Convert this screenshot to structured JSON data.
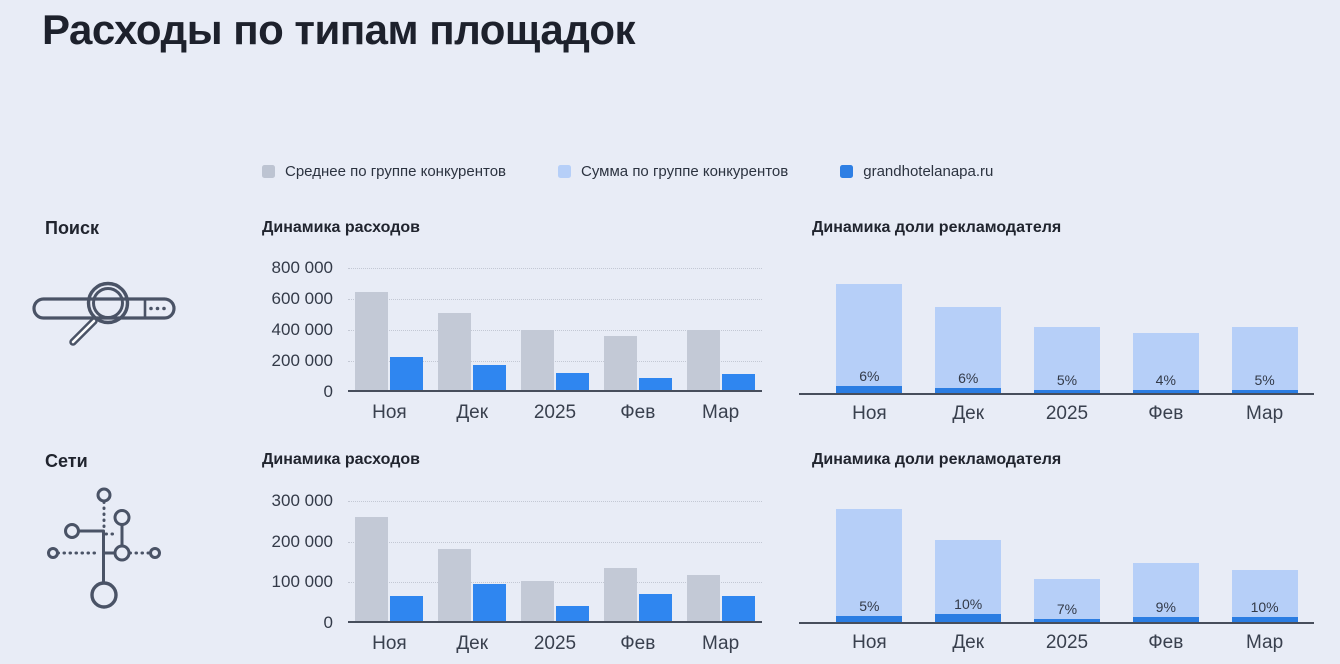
{
  "page": {
    "title": "Расходы по типам площадок",
    "background": "#e8ecf6"
  },
  "legend": [
    {
      "label": "Среднее по группе конкурентов",
      "color": "#bdc4d2",
      "series": "competitor-group-average"
    },
    {
      "label": "Сумма по группе конкурентов",
      "color": "#b6cff8",
      "series": "competitor-group-sum"
    },
    {
      "label": "grandhotelanapa.ru",
      "color": "#2e7fe4",
      "series": "advertiser"
    }
  ],
  "colors": {
    "background": "#e8ecf6",
    "avg_bar": "#c3c9d6",
    "sum_bar": "#b6cff8",
    "advertiser_bar": "#2f86f0",
    "advertiser_segment": "#2b7de2",
    "axis": "#474e5c",
    "grid": "#c3c8d4",
    "title_text": "#1d212c",
    "label_text": "#333a48"
  },
  "sections": [
    {
      "name": "Поиск",
      "icon": "search-bar-icon",
      "charts": [
        "search-expenses",
        "search-share"
      ]
    },
    {
      "name": "Сети",
      "icon": "network-icon",
      "charts": [
        "networks-expenses",
        "networks-share"
      ]
    }
  ],
  "chart_data": [
    {
      "id": "search-expenses",
      "type": "bar",
      "variant": "grouped",
      "section": "Поиск",
      "title": "Динамика расходов",
      "categories": [
        "Ноя",
        "Дек",
        "2025",
        "Фев",
        "Мар"
      ],
      "series": [
        {
          "name": "Среднее по группе конкурентов",
          "values": [
            630000,
            495000,
            385000,
            350000,
            385000
          ]
        },
        {
          "name": "grandhotelanapa.ru",
          "values": [
            210000,
            160000,
            110000,
            80000,
            105000
          ]
        }
      ],
      "ylim": [
        0,
        800000
      ],
      "yticks": [
        "800 000",
        "600 000",
        "400 000",
        "200 000",
        "0"
      ],
      "grid": "horizontal-dotted",
      "legend_position": "top-shared"
    },
    {
      "id": "search-share",
      "type": "bar",
      "variant": "stacked",
      "section": "Поиск",
      "title": "Динамика доли рекламодателя",
      "categories": [
        "Ноя",
        "Дек",
        "2025",
        "Фев",
        "Мар"
      ],
      "series": [
        {
          "name": "Сумма по группе конкурентов",
          "totals_relative": [
            100,
            79,
            61,
            55,
            61
          ]
        },
        {
          "name": "grandhotelanapa.ru",
          "share_percent": [
            6,
            6,
            5,
            4,
            5
          ]
        }
      ],
      "bar_labels": [
        "6%",
        "6%",
        "5%",
        "4%",
        "5%"
      ],
      "yaxis": "none",
      "grid": "off"
    },
    {
      "id": "networks-expenses",
      "type": "bar",
      "variant": "grouped",
      "section": "Сети",
      "title": "Динамика расходов",
      "categories": [
        "Ноя",
        "Дек",
        "2025",
        "Фев",
        "Мар"
      ],
      "series": [
        {
          "name": "Среднее по группе конкурентов",
          "values": [
            255000,
            176000,
            98000,
            130000,
            112000
          ]
        },
        {
          "name": "grandhotelanapa.ru",
          "values": [
            61000,
            92000,
            36000,
            67000,
            61000
          ]
        }
      ],
      "ylim": [
        0,
        300000
      ],
      "yticks": [
        "300 000",
        "200 000",
        "100 000",
        "0"
      ],
      "grid": "horizontal-dotted",
      "legend_position": "top-shared"
    },
    {
      "id": "networks-share",
      "type": "bar",
      "variant": "stacked",
      "section": "Сети",
      "title": "Динамика доли рекламодателя",
      "categories": [
        "Ноя",
        "Дек",
        "2025",
        "Фев",
        "Мар"
      ],
      "series": [
        {
          "name": "Сумма по группе конкурентов",
          "totals_relative": [
            100,
            73,
            38,
            52,
            46
          ]
        },
        {
          "name": "grandhotelanapa.ru",
          "share_percent": [
            5,
            10,
            7,
            9,
            10
          ]
        }
      ],
      "bar_labels": [
        "5%",
        "10%",
        "7%",
        "9%",
        "10%"
      ],
      "yaxis": "none",
      "grid": "off"
    }
  ]
}
